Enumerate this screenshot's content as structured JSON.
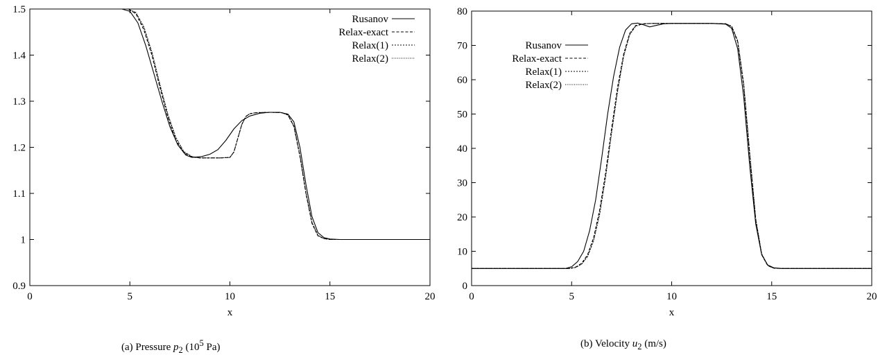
{
  "chart_data": [
    {
      "type": "line",
      "panel": "(a)",
      "caption_prefix": "(a)  Pressure ",
      "caption_var": "p",
      "caption_sub": "2",
      "caption_mid": " (10",
      "caption_sup": "5",
      "caption_end": " Pa)",
      "xlabel": "x",
      "ylabel": "",
      "xlim": [
        0,
        20
      ],
      "ylim": [
        0.9,
        1.5
      ],
      "xticks": [
        0,
        5,
        10,
        15,
        20
      ],
      "yticks": [
        0.9,
        1.0,
        1.1,
        1.2,
        1.3,
        1.4,
        1.5
      ],
      "ytick_labels": [
        "0.9",
        "1",
        "1.1",
        "1.2",
        "1.3",
        "1.4",
        "1.5"
      ],
      "legend_position": "top-right",
      "series": [
        {
          "name": "Rusanov",
          "style": "solid",
          "x": [
            0,
            4.6,
            5.0,
            5.4,
            5.8,
            6.2,
            6.6,
            7.0,
            7.4,
            7.8,
            8.1,
            8.6,
            9.0,
            9.4,
            9.8,
            10.2,
            10.6,
            11.0,
            11.5,
            12.0,
            12.5,
            12.9,
            13.2,
            13.5,
            13.8,
            14.1,
            14.4,
            14.7,
            15.0,
            15.5,
            20
          ],
          "y": [
            1.5,
            1.5,
            1.495,
            1.47,
            1.42,
            1.36,
            1.3,
            1.245,
            1.205,
            1.183,
            1.178,
            1.18,
            1.185,
            1.195,
            1.215,
            1.24,
            1.258,
            1.268,
            1.274,
            1.276,
            1.276,
            1.272,
            1.255,
            1.2,
            1.12,
            1.05,
            1.015,
            1.004,
            1.001,
            1.0,
            1.0
          ]
        },
        {
          "name": "Relax-exact",
          "style": "dashed",
          "x": [
            0,
            4.9,
            5.3,
            5.7,
            6.1,
            6.5,
            6.9,
            7.3,
            7.7,
            8.1,
            8.5,
            9.5,
            10.0,
            10.2,
            10.4,
            10.6,
            10.8,
            11.0,
            11.3,
            12.0,
            12.6,
            12.9,
            13.2,
            13.5,
            13.8,
            14.1,
            14.4,
            14.7,
            15.0,
            15.5,
            20
          ],
          "y": [
            1.5,
            1.5,
            1.49,
            1.455,
            1.4,
            1.33,
            1.265,
            1.215,
            1.188,
            1.179,
            1.177,
            1.177,
            1.178,
            1.19,
            1.22,
            1.25,
            1.267,
            1.273,
            1.275,
            1.276,
            1.275,
            1.27,
            1.245,
            1.18,
            1.1,
            1.035,
            1.008,
            1.002,
            1.0,
            1.0,
            1.0
          ]
        },
        {
          "name": "Relax(1)",
          "style": "dotted-fine",
          "x": [
            0,
            4.9,
            5.3,
            5.7,
            6.1,
            6.5,
            6.9,
            7.3,
            7.7,
            8.1,
            8.5,
            9.5,
            10.0,
            10.2,
            10.4,
            10.6,
            10.8,
            11.0,
            11.3,
            12.0,
            12.6,
            12.9,
            13.2,
            13.5,
            13.8,
            14.1,
            14.4,
            14.7,
            15.0,
            15.5,
            20
          ],
          "y": [
            1.5,
            1.5,
            1.492,
            1.46,
            1.405,
            1.335,
            1.27,
            1.22,
            1.19,
            1.18,
            1.177,
            1.177,
            1.178,
            1.19,
            1.22,
            1.25,
            1.267,
            1.273,
            1.275,
            1.276,
            1.275,
            1.27,
            1.246,
            1.182,
            1.102,
            1.037,
            1.009,
            1.002,
            1.0,
            1.0,
            1.0
          ]
        },
        {
          "name": "Relax(2)",
          "style": "dotted",
          "x": [
            0,
            4.9,
            5.3,
            5.7,
            6.1,
            6.5,
            6.9,
            7.3,
            7.7,
            8.1,
            8.5,
            9.5,
            10.0,
            10.2,
            10.4,
            10.6,
            10.8,
            11.0,
            11.3,
            12.0,
            12.6,
            12.9,
            13.2,
            13.5,
            13.8,
            14.1,
            14.4,
            14.7,
            15.0,
            15.5,
            20
          ],
          "y": [
            1.5,
            1.5,
            1.493,
            1.462,
            1.408,
            1.338,
            1.272,
            1.222,
            1.191,
            1.18,
            1.177,
            1.177,
            1.178,
            1.19,
            1.22,
            1.25,
            1.267,
            1.273,
            1.275,
            1.276,
            1.275,
            1.27,
            1.247,
            1.183,
            1.103,
            1.038,
            1.009,
            1.002,
            1.0,
            1.0,
            1.0
          ]
        }
      ]
    },
    {
      "type": "line",
      "panel": "(b)",
      "caption_prefix": "(b)  Velocity ",
      "caption_var": "u",
      "caption_sub": "2",
      "caption_mid": " (m/s)",
      "caption_sup": "",
      "caption_end": "",
      "xlabel": "x",
      "ylabel": "",
      "xlim": [
        0,
        20
      ],
      "ylim": [
        0,
        80
      ],
      "xticks": [
        0,
        5,
        10,
        15,
        20
      ],
      "yticks": [
        0,
        10,
        20,
        30,
        40,
        50,
        60,
        70,
        80
      ],
      "ytick_labels": [
        "0",
        "10",
        "20",
        "30",
        "40",
        "50",
        "60",
        "70",
        "80"
      ],
      "legend_position": "top-left",
      "series": [
        {
          "name": "Rusanov",
          "style": "solid",
          "x": [
            0,
            4.7,
            5.0,
            5.3,
            5.6,
            5.9,
            6.2,
            6.5,
            6.8,
            7.1,
            7.4,
            7.7,
            8.0,
            8.3,
            8.6,
            8.9,
            9.2,
            9.6,
            10.0,
            11.0,
            12.0,
            12.7,
            13.0,
            13.3,
            13.6,
            13.9,
            14.2,
            14.5,
            14.8,
            15.1,
            15.5,
            20
          ],
          "y": [
            5,
            5,
            5.5,
            7,
            10,
            16,
            25,
            37,
            50,
            61,
            69.5,
            74.5,
            76.3,
            76.5,
            76.0,
            75.4,
            75.8,
            76.3,
            76.4,
            76.4,
            76.4,
            76.2,
            75.0,
            69,
            55,
            35,
            18,
            9,
            6,
            5.2,
            5,
            5
          ]
        },
        {
          "name": "Relax-exact",
          "style": "dashed",
          "x": [
            0,
            4.9,
            5.2,
            5.5,
            5.8,
            6.1,
            6.4,
            6.7,
            7.0,
            7.3,
            7.6,
            7.9,
            8.2,
            8.6,
            9.0,
            10.0,
            11.0,
            12.0,
            12.7,
            13.0,
            13.3,
            13.6,
            13.9,
            14.2,
            14.5,
            14.8,
            15.1,
            15.5,
            20
          ],
          "y": [
            5,
            5,
            5.4,
            6.5,
            9,
            14,
            22,
            33,
            46,
            58,
            67.5,
            73.5,
            75.8,
            76.3,
            76.4,
            76.4,
            76.4,
            76.4,
            76.3,
            75.5,
            71,
            58,
            38,
            19,
            9,
            5.8,
            5.1,
            5,
            5
          ]
        },
        {
          "name": "Relax(1)",
          "style": "dotted-fine",
          "x": [
            0,
            4.9,
            5.2,
            5.5,
            5.8,
            6.1,
            6.4,
            6.7,
            7.0,
            7.3,
            7.6,
            7.9,
            8.2,
            8.6,
            9.0,
            10.0,
            11.0,
            12.0,
            12.7,
            13.0,
            13.3,
            13.6,
            13.9,
            14.2,
            14.5,
            14.8,
            15.1,
            15.5,
            20
          ],
          "y": [
            5,
            5,
            5.3,
            6.3,
            8.6,
            13.4,
            21,
            32,
            45,
            57,
            67,
            73.2,
            75.7,
            76.3,
            76.4,
            76.4,
            76.4,
            76.4,
            76.3,
            75.6,
            71.3,
            58.6,
            38.6,
            19.4,
            9.2,
            5.9,
            5.1,
            5,
            5
          ]
        },
        {
          "name": "Relax(2)",
          "style": "dotted",
          "x": [
            0,
            4.9,
            5.2,
            5.5,
            5.8,
            6.1,
            6.4,
            6.7,
            7.0,
            7.3,
            7.6,
            7.9,
            8.2,
            8.6,
            9.0,
            10.0,
            11.0,
            12.0,
            12.7,
            13.0,
            13.3,
            13.6,
            13.9,
            14.2,
            14.5,
            14.8,
            15.1,
            15.5,
            20
          ],
          "y": [
            5,
            5,
            5.3,
            6.2,
            8.4,
            13,
            20.5,
            31.5,
            44.5,
            56.5,
            66.7,
            73,
            75.6,
            76.3,
            76.4,
            76.4,
            76.4,
            76.4,
            76.3,
            75.6,
            71.5,
            59,
            39,
            19.6,
            9.3,
            5.9,
            5.1,
            5,
            5
          ]
        }
      ]
    }
  ]
}
